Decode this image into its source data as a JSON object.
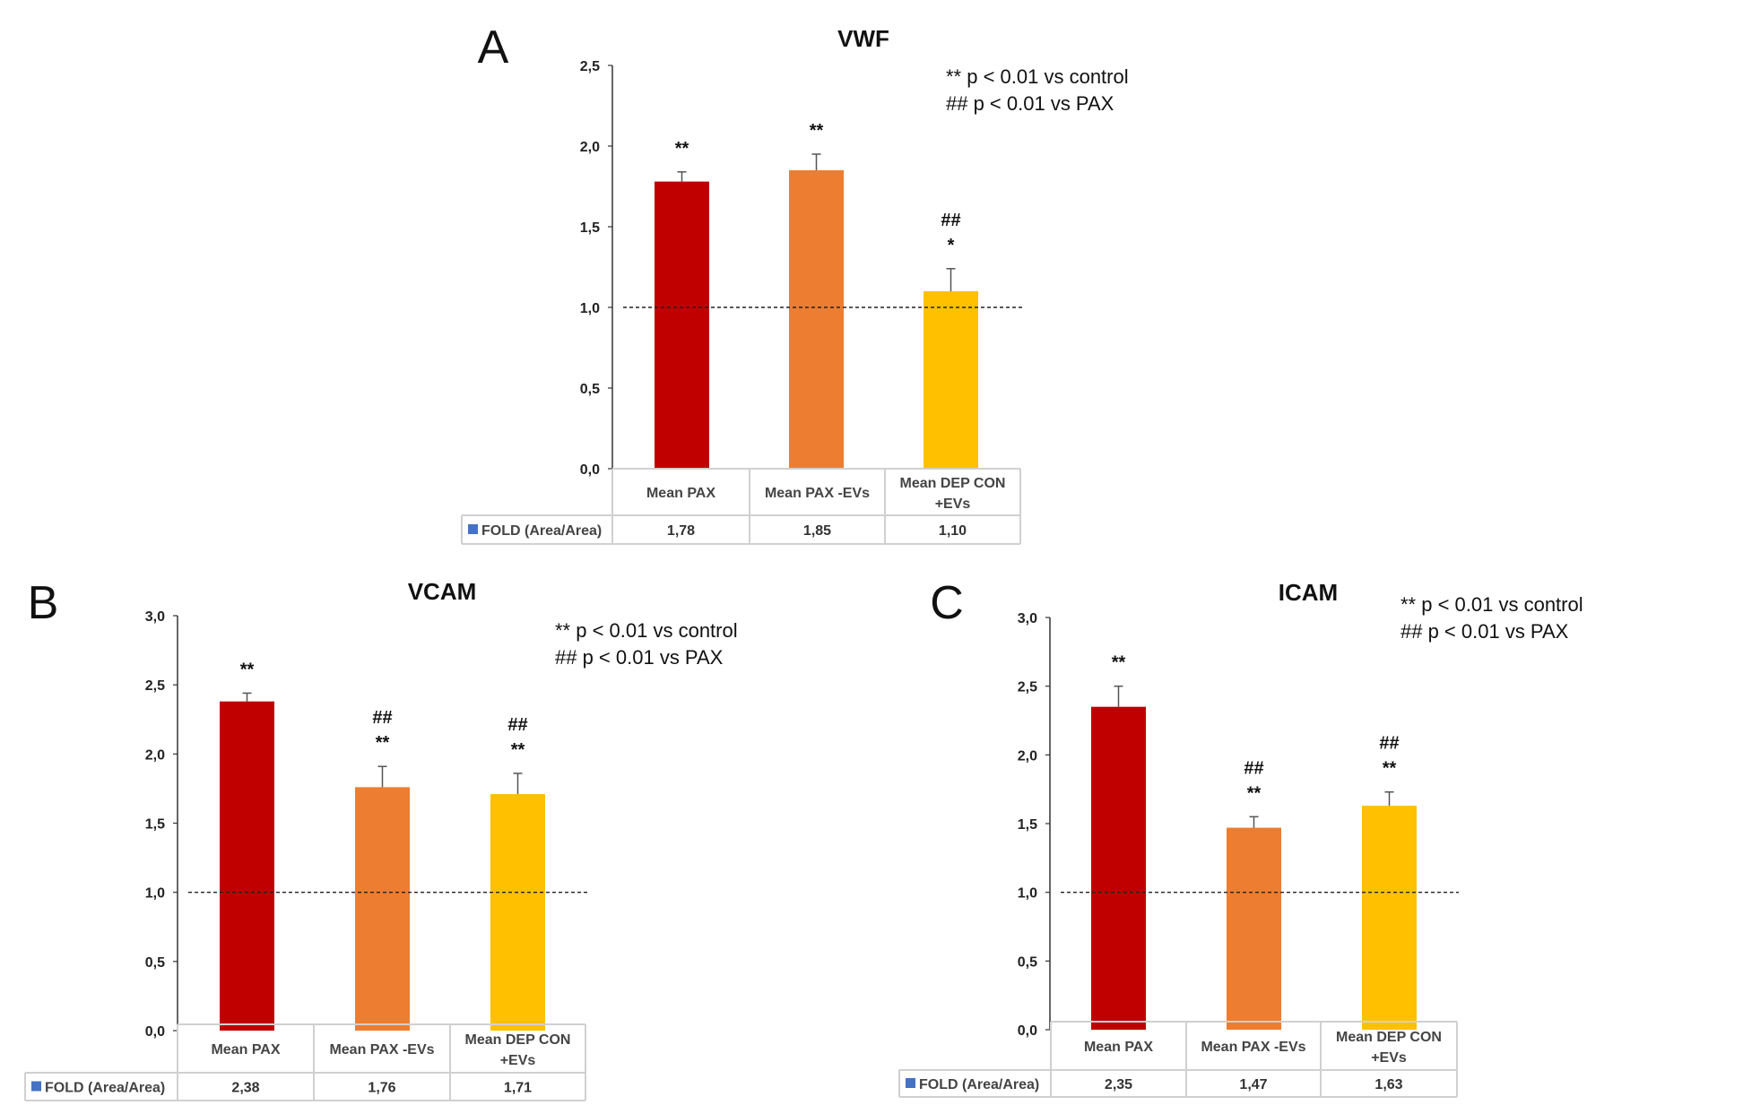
{
  "figure": {
    "significance_legend": [
      "** p < 0.01 vs control",
      "## p < 0.01 vs PAX"
    ],
    "series_label": "FOLD (Area/Area)"
  },
  "chart_data": [
    {
      "panel": "A",
      "type": "bar",
      "title": "VWF",
      "categories": [
        "Mean PAX",
        "Mean PAX -EVs",
        "Mean DEP CON +EVs"
      ],
      "category_lines": [
        [
          "Mean PAX"
        ],
        [
          "Mean PAX -EVs"
        ],
        [
          "Mean DEP CON",
          "+EVs"
        ]
      ],
      "series": [
        {
          "name": "FOLD (Area/Area)",
          "values": [
            1.78,
            1.85,
            1.1
          ],
          "value_labels": [
            "1,78",
            "1,85",
            "1,10"
          ],
          "error_upper": [
            1.84,
            1.95,
            1.24
          ]
        }
      ],
      "colors": [
        "#c00000",
        "#ed7d31",
        "#ffc000"
      ],
      "significance": [
        [
          "**"
        ],
        [
          "**"
        ],
        [
          "##",
          "*"
        ]
      ],
      "ylim": [
        0,
        2.5
      ],
      "yticks": [
        "0,0",
        "0,5",
        "1,0",
        "1,5",
        "2,0",
        "2,5"
      ],
      "ytick_values": [
        0,
        0.5,
        1.0,
        1.5,
        2.0,
        2.5
      ],
      "reference_line": 1.0,
      "legend_text": [
        "** p < 0.01 vs control",
        "## p < 0.01 vs PAX"
      ],
      "xlabel": "",
      "ylabel": "",
      "grid": false,
      "data_table": true
    },
    {
      "panel": "B",
      "type": "bar",
      "title": "VCAM",
      "categories": [
        "Mean PAX",
        "Mean PAX -EVs",
        "Mean DEP CON +EVs"
      ],
      "category_lines": [
        [
          "Mean PAX"
        ],
        [
          "Mean PAX -EVs"
        ],
        [
          "Mean DEP CON",
          "+EVs"
        ]
      ],
      "series": [
        {
          "name": "FOLD (Area/Area)",
          "values": [
            2.38,
            1.76,
            1.71
          ],
          "value_labels": [
            "2,38",
            "1,76",
            "1,71"
          ],
          "error_upper": [
            2.44,
            1.91,
            1.86
          ]
        }
      ],
      "colors": [
        "#c00000",
        "#ed7d31",
        "#ffc000"
      ],
      "significance": [
        [
          "**"
        ],
        [
          "##",
          "**"
        ],
        [
          "##",
          "**"
        ]
      ],
      "ylim": [
        0,
        3.0
      ],
      "yticks": [
        "0,0",
        "0,5",
        "1,0",
        "1,5",
        "2,0",
        "2,5",
        "3,0"
      ],
      "ytick_values": [
        0,
        0.5,
        1.0,
        1.5,
        2.0,
        2.5,
        3.0
      ],
      "reference_line": 1.0,
      "legend_text": [
        "** p < 0.01  vs control",
        "## p < 0.01  vs PAX"
      ],
      "xlabel": "",
      "ylabel": "",
      "grid": false,
      "data_table": true
    },
    {
      "panel": "C",
      "type": "bar",
      "title": "ICAM",
      "categories": [
        "Mean PAX",
        "Mean PAX -EVs",
        "Mean DEP CON +EVs"
      ],
      "category_lines": [
        [
          "Mean PAX"
        ],
        [
          "Mean PAX -EVs"
        ],
        [
          "Mean DEP CON",
          "+EVs"
        ]
      ],
      "series": [
        {
          "name": "FOLD (Area/Area)",
          "values": [
            2.35,
            1.47,
            1.63
          ],
          "value_labels": [
            "2,35",
            "1,47",
            "1,63"
          ],
          "error_upper": [
            2.5,
            1.55,
            1.73
          ]
        }
      ],
      "colors": [
        "#c00000",
        "#ed7d31",
        "#ffc000"
      ],
      "significance": [
        [
          "**"
        ],
        [
          "##",
          "**"
        ],
        [
          "##",
          "**"
        ]
      ],
      "ylim": [
        0,
        3.0
      ],
      "yticks": [
        "0,0",
        "0,5",
        "1,0",
        "1,5",
        "2,0",
        "2,5",
        "3,0"
      ],
      "ytick_values": [
        0,
        0.5,
        1.0,
        1.5,
        2.0,
        2.5,
        3.0
      ],
      "reference_line": 1.0,
      "legend_text": [
        "** p < 0.01  vs control",
        "## p < 0.01  vs PAX"
      ],
      "xlabel": "",
      "ylabel": "",
      "grid": false,
      "data_table": true
    }
  ],
  "legend_marker_color": "#4472c4"
}
